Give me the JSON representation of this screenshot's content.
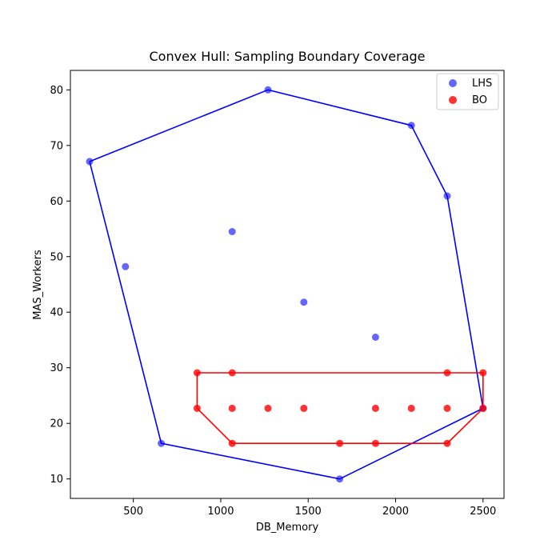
{
  "chart_data": {
    "type": "scatter",
    "title": "Convex Hull: Sampling Boundary Coverage",
    "xlabel": "DB_Memory",
    "ylabel": "MAS_Workers",
    "xlim": [
      140,
      2620
    ],
    "ylim": [
      6.5,
      83.5
    ],
    "xticks": [
      500,
      1000,
      1500,
      2000,
      2500
    ],
    "yticks": [
      10,
      20,
      30,
      40,
      50,
      60,
      70,
      80
    ],
    "grid": false,
    "legend_position": "upper-right",
    "series": [
      {
        "name": "LHS",
        "color": "#0000ff",
        "points": [
          [
            250,
            67.1
          ],
          [
            455,
            48.2
          ],
          [
            660,
            16.4
          ],
          [
            1065,
            54.5
          ],
          [
            1270,
            80.0
          ],
          [
            1475,
            41.8
          ],
          [
            1680,
            10.0
          ],
          [
            1885,
            35.5
          ],
          [
            2090,
            73.6
          ],
          [
            2295,
            60.9
          ],
          [
            2500,
            22.7
          ]
        ],
        "hull": [
          [
            250,
            67.1
          ],
          [
            1270,
            80.0
          ],
          [
            2090,
            73.6
          ],
          [
            2295,
            60.9
          ],
          [
            2500,
            22.7
          ],
          [
            1680,
            10.0
          ],
          [
            660,
            16.4
          ],
          [
            250,
            67.1
          ]
        ]
      },
      {
        "name": "BO",
        "color": "#ff0000",
        "points": [
          [
            865,
            29.1
          ],
          [
            1065,
            29.1
          ],
          [
            2295,
            29.1
          ],
          [
            2500,
            29.1
          ],
          [
            865,
            22.7
          ],
          [
            1065,
            22.7
          ],
          [
            1270,
            22.7
          ],
          [
            1475,
            22.7
          ],
          [
            1885,
            22.7
          ],
          [
            2090,
            22.7
          ],
          [
            2295,
            22.7
          ],
          [
            2500,
            22.7
          ],
          [
            1065,
            16.4
          ],
          [
            1680,
            16.4
          ],
          [
            1885,
            16.4
          ],
          [
            2295,
            16.4
          ]
        ],
        "hull": [
          [
            865,
            29.1
          ],
          [
            2500,
            29.1
          ],
          [
            2500,
            22.7
          ],
          [
            2295,
            16.4
          ],
          [
            1065,
            16.4
          ],
          [
            865,
            22.7
          ],
          [
            865,
            29.1
          ]
        ]
      }
    ]
  }
}
